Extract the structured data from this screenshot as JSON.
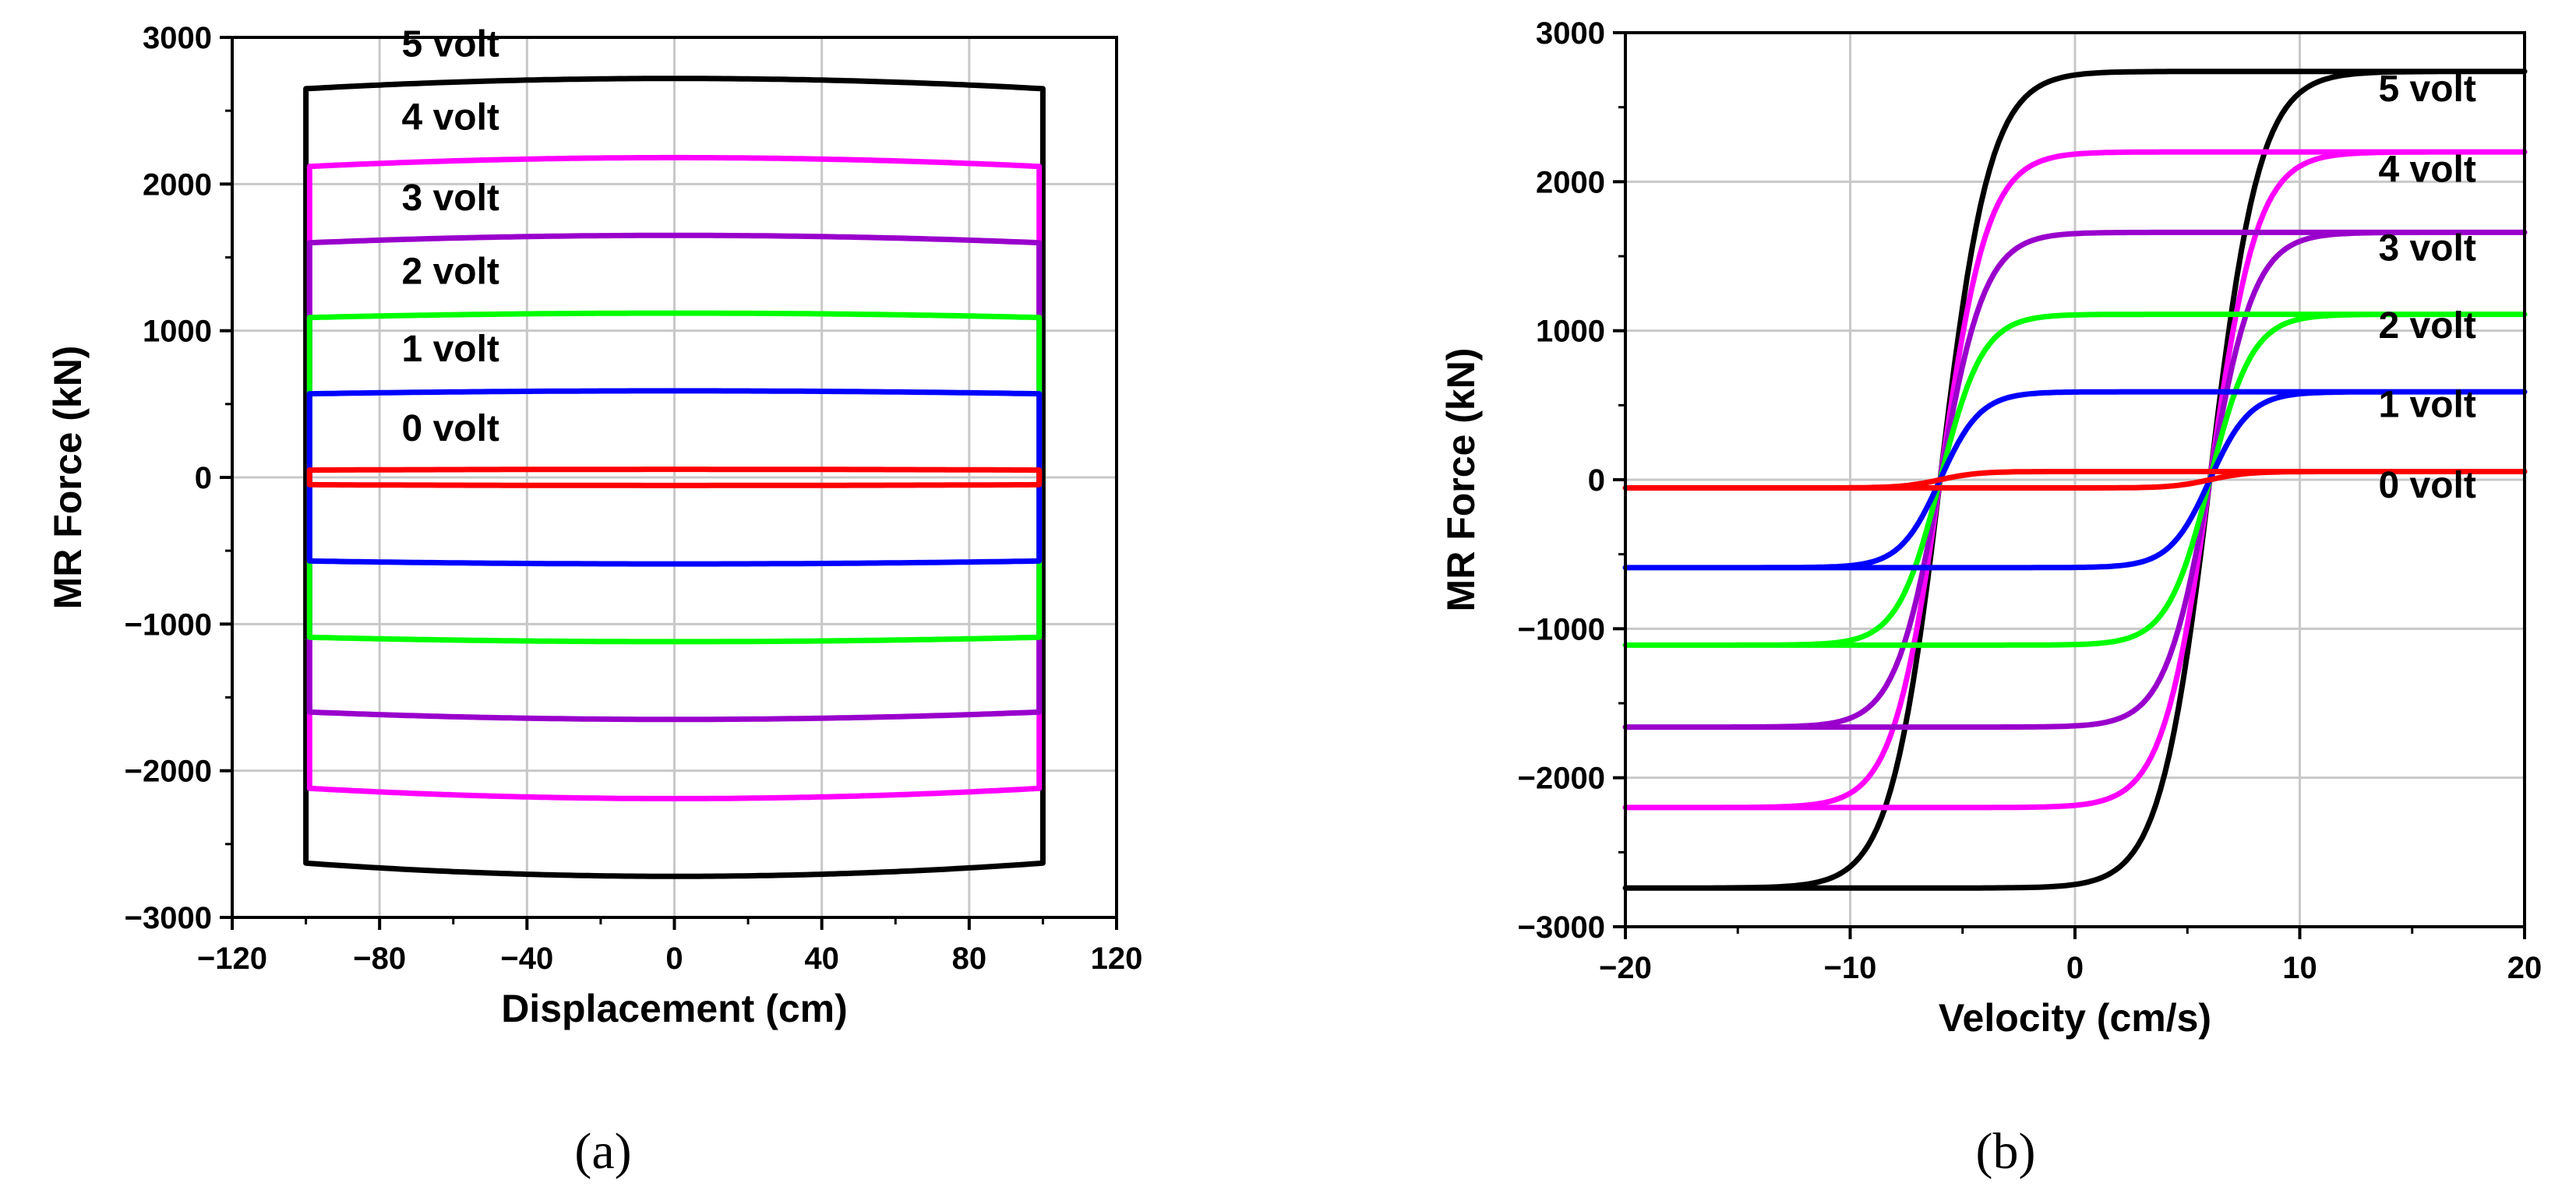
{
  "chart_data": [
    {
      "type": "line",
      "panel_label": "(a)",
      "xlabel": "Displacement (cm)",
      "ylabel": "MR Force (kN)",
      "xlim": [
        -120,
        120
      ],
      "ylim": [
        -3000,
        3000
      ],
      "x_ticks": [
        -120,
        -80,
        -40,
        0,
        40,
        80,
        120
      ],
      "x_tick_labels": [
        "−120",
        "−80",
        "−40",
        "0",
        "40",
        "80",
        "120"
      ],
      "y_ticks": [
        -3000,
        -2000,
        -1000,
        0,
        1000,
        2000,
        3000
      ],
      "y_tick_labels": [
        "−3000",
        "−2000",
        "−1000",
        "0",
        "1000",
        "2000",
        "3000"
      ],
      "grid": true,
      "series": [
        {
          "name": "5 volt",
          "color": "#000000",
          "amplitude": 100,
          "upper_edge": 2650,
          "upper_mid": 2720,
          "lower_edge": -2630,
          "lower_mid": -2720
        },
        {
          "name": "4 volt",
          "color": "#ff00ff",
          "amplitude": 99,
          "upper_edge": 2120,
          "upper_mid": 2180,
          "lower_edge": -2120,
          "lower_mid": -2190
        },
        {
          "name": "3 volt",
          "color": "#9900cc",
          "amplitude": 99,
          "upper_edge": 1600,
          "upper_mid": 1650,
          "lower_edge": -1600,
          "lower_mid": -1650
        },
        {
          "name": "2 volt",
          "color": "#00ff00",
          "amplitude": 99,
          "upper_edge": 1090,
          "upper_mid": 1120,
          "lower_edge": -1090,
          "lower_mid": -1120
        },
        {
          "name": "1 volt",
          "color": "#0000ff",
          "amplitude": 99,
          "upper_edge": 570,
          "upper_mid": 590,
          "lower_edge": -570,
          "lower_mid": -590
        },
        {
          "name": "0 volt",
          "color": "#ff0000",
          "amplitude": 99,
          "upper_edge": 50,
          "upper_mid": 55,
          "lower_edge": -50,
          "lower_mid": -55
        }
      ],
      "annotations": [
        {
          "text": "5 volt",
          "x": -74,
          "y": 2870
        },
        {
          "text": "4 volt",
          "x": -74,
          "y": 2370
        },
        {
          "text": "3 volt",
          "x": -74,
          "y": 1820
        },
        {
          "text": "2 volt",
          "x": -74,
          "y": 1320
        },
        {
          "text": "1 volt",
          "x": -74,
          "y": 790
        },
        {
          "text": "0 volt",
          "x": -74,
          "y": 250
        }
      ]
    },
    {
      "type": "line",
      "panel_label": "(b)",
      "xlabel": "Velocity (cm/s)",
      "ylabel": "MR Force (kN)",
      "xlim": [
        -20,
        20
      ],
      "ylim": [
        -3000,
        3000
      ],
      "x_ticks": [
        -20,
        -10,
        0,
        10,
        20
      ],
      "x_tick_labels": [
        "−20",
        "−10",
        "0",
        "10",
        "20"
      ],
      "y_ticks": [
        -3000,
        -2000,
        -1000,
        0,
        1000,
        2000,
        3000
      ],
      "y_tick_labels": [
        "−3000",
        "−2000",
        "−1000",
        "0",
        "1000",
        "2000",
        "3000"
      ],
      "grid": true,
      "crossing_velocity": 6,
      "series": [
        {
          "name": "5 volt",
          "color": "#000000",
          "fmax": 2740,
          "transition_width": 4.2
        },
        {
          "name": "4 volt",
          "color": "#ff00ff",
          "fmax": 2200,
          "transition_width": 4.0
        },
        {
          "name": "3 volt",
          "color": "#9900cc",
          "fmax": 1660,
          "transition_width": 3.8
        },
        {
          "name": "2 volt",
          "color": "#00ff00",
          "fmax": 1110,
          "transition_width": 3.6
        },
        {
          "name": "1 volt",
          "color": "#0000ff",
          "fmax": 590,
          "transition_width": 3.4
        },
        {
          "name": "0 volt",
          "color": "#ff0000",
          "fmax": 55,
          "transition_width": 3.2
        }
      ],
      "annotations": [
        {
          "text": "5 volt",
          "x": 13.5,
          "y": 2540
        },
        {
          "text": "4 volt",
          "x": 13.5,
          "y": 2000
        },
        {
          "text": "3 volt",
          "x": 13.5,
          "y": 1470
        },
        {
          "text": "2 volt",
          "x": 13.5,
          "y": 950
        },
        {
          "text": "1 volt",
          "x": 13.5,
          "y": 420
        },
        {
          "text": "0 volt",
          "x": 13.5,
          "y": -120
        }
      ]
    }
  ]
}
